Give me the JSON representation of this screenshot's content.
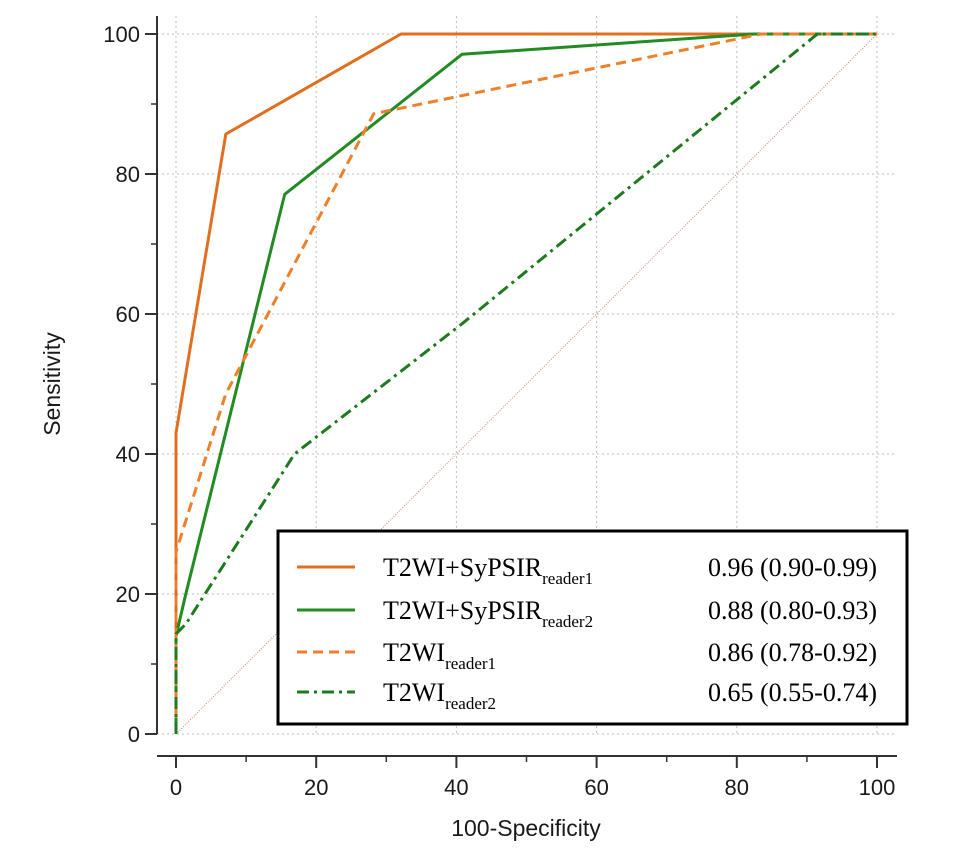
{
  "chart_data": {
    "type": "line",
    "xlabel": "100-Specificity",
    "ylabel": "Sensitivity",
    "xlim": [
      0,
      100
    ],
    "ylim": [
      0,
      100
    ],
    "xticks": [
      0,
      20,
      40,
      60,
      80,
      100
    ],
    "yticks": [
      0,
      20,
      40,
      60,
      80,
      100
    ],
    "grid": true,
    "legend_position": "bottom-right",
    "reference_line": {
      "x": [
        0,
        100
      ],
      "y": [
        0,
        100
      ],
      "color": "#d9826a",
      "style": "dotted"
    },
    "series": [
      {
        "name_main": "T2WI+SyPSIR",
        "name_sub": "reader1",
        "auc_text": "0.96 (0.90-0.99)",
        "color": "#e07020",
        "dash": "solid",
        "points": [
          [
            0,
            0
          ],
          [
            0,
            43
          ],
          [
            7.1,
            85.7
          ],
          [
            32.1,
            100
          ],
          [
            100,
            100
          ]
        ]
      },
      {
        "name_main": "T2WI+SyPSIR",
        "name_sub": "reader2",
        "auc_text": "0.88 (0.80-0.93)",
        "color": "#228b22",
        "dash": "solid",
        "points": [
          [
            0,
            0
          ],
          [
            0,
            14
          ],
          [
            1.4,
            20
          ],
          [
            15.5,
            77.1
          ],
          [
            40.8,
            97.1
          ],
          [
            82.5,
            100
          ],
          [
            100,
            100
          ]
        ]
      },
      {
        "name_main": "T2WI",
        "name_sub": "reader1",
        "auc_text": "0.86 (0.78-0.92)",
        "color": "#f07f2a",
        "dash": "dashed",
        "points": [
          [
            0,
            0
          ],
          [
            0,
            26
          ],
          [
            7.1,
            48.6
          ],
          [
            28.2,
            88.6
          ],
          [
            83.5,
            100
          ],
          [
            100,
            100
          ]
        ]
      },
      {
        "name_main": "T2WI",
        "name_sub": "reader2",
        "auc_text": "0.65 (0.55-0.74)",
        "color": "#1e7a1e",
        "dash": "dashdot",
        "points": [
          [
            0,
            0
          ],
          [
            0,
            14.3
          ],
          [
            1.4,
            15.7
          ],
          [
            16.9,
            40
          ],
          [
            40.8,
            58.6
          ],
          [
            91.5,
            100
          ],
          [
            100,
            100
          ]
        ]
      }
    ]
  }
}
